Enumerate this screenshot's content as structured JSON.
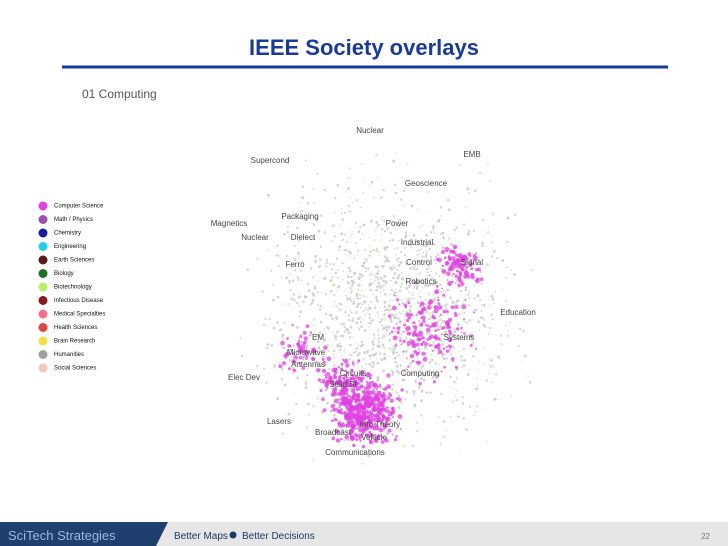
{
  "header": {
    "title": "IEEE Society overlays",
    "subtitle": "01 Computing"
  },
  "legend": [
    {
      "label": "Computer Science",
      "color": "#e040e0"
    },
    {
      "label": "Math / Physics",
      "color": "#9b4fb0"
    },
    {
      "label": "Chemistry",
      "color": "#1a1aa0"
    },
    {
      "label": "Engineering",
      "color": "#20d0e8"
    },
    {
      "label": "Earth Sciences",
      "color": "#5a1a1a"
    },
    {
      "label": "Biology",
      "color": "#207020"
    },
    {
      "label": "Biotechnology",
      "color": "#b8f060"
    },
    {
      "label": "Infectious Disease",
      "color": "#8b1a1a"
    },
    {
      "label": "Medical Specialties",
      "color": "#f07090"
    },
    {
      "label": "Health Sciences",
      "color": "#e84040"
    },
    {
      "label": "Brain Research",
      "color": "#f0e040"
    },
    {
      "label": "Humanities",
      "color": "#a0a0a0"
    },
    {
      "label": "Social Sciences",
      "color": "#f0c8b8"
    }
  ],
  "map_labels": [
    "Nuclear",
    "EMB",
    "Supercond",
    "Geoscience",
    "Magnetics",
    "Packaging",
    "Power",
    "Nuclear",
    "Dielect",
    "Industrial",
    "Ferro",
    "Control",
    "Signal",
    "Robotics",
    "Education",
    "EM",
    "Systems",
    "Microwave",
    "Antennas",
    "Circuits",
    "Computing",
    "Solid St",
    "Elec Dev",
    "Lasers",
    "Info Theory",
    "Broadcast",
    "Vehicle",
    "Communications"
  ],
  "footer": {
    "brand": "SciTech Strategies",
    "slogan_left": "Better Maps",
    "slogan_right": "Better Decisions",
    "page": "22"
  }
}
